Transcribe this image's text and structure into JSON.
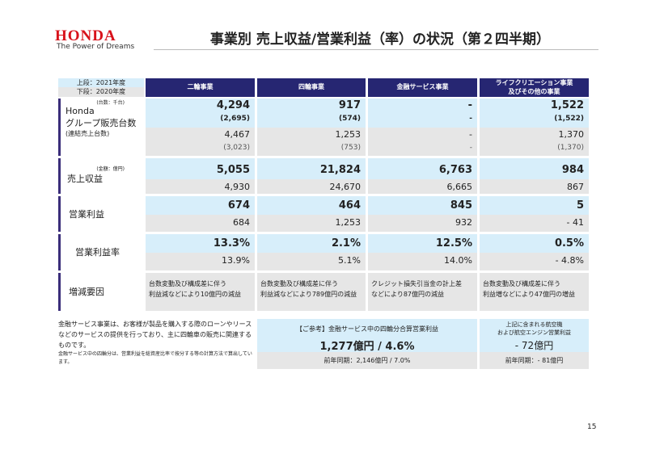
{
  "header": {
    "logo": "HONDA",
    "tagline": "The Power of Dreams",
    "title": "事業別 売上収益/営業利益（率）の状況（第２四半期）"
  },
  "legend": {
    "upper": "上段：2021年度",
    "lower": "下段：2020年度"
  },
  "columns": [
    "二輪事業",
    "四輪事業",
    "金融サービス事業",
    "ライフクリエーション事業\n及びその他の事業"
  ],
  "rows": {
    "units": {
      "unit_note": "(台数：千台)",
      "label1": "Honda",
      "label2": "グループ販売台数",
      "label3": "(連結売上台数)",
      "cur": [
        "4,294",
        "917",
        "-",
        "1,522"
      ],
      "cur_sub": [
        "(2,695)",
        "(574)",
        "-",
        "(1,522)"
      ],
      "prev": [
        "4,467",
        "1,253",
        "-",
        "1,370"
      ],
      "prev_sub": [
        "(3,023)",
        "(753)",
        "-",
        "(1,370)"
      ]
    },
    "revenue": {
      "unit_note": "(金額：億円)",
      "label": "売上収益",
      "cur": [
        "5,055",
        "21,824",
        "6,763",
        "984"
      ],
      "prev": [
        "4,930",
        "24,670",
        "6,665",
        "867"
      ]
    },
    "op_profit": {
      "label": "営業利益",
      "cur": [
        "674",
        "464",
        "845",
        "5"
      ],
      "prev": [
        "684",
        "1,253",
        "932",
        "- 41"
      ]
    },
    "margin": {
      "label": "営業利益率",
      "cur": [
        "13.3%",
        "2.1%",
        "12.5%",
        "0.5%"
      ],
      "prev": [
        "13.9%",
        "5.1%",
        "14.0%",
        "- 4.8%"
      ]
    },
    "factors": {
      "label": "増減要因",
      "values": [
        "台数変動及び構成差に伴う\n利益減などにより10億円の減益",
        "台数変動及び構成差に伴う\n利益減などにより789億円の減益",
        "クレジット損失引当金の計上差\nなどにより87億円の減益",
        "台数変動及び構成差に伴う\n利益増などにより47億円の増益"
      ]
    }
  },
  "notes": {
    "main": "金融サービス事業は、お客様が製品を購入する際のローンやリースなどのサービスの提供を行っており、主に四輪車の販売に関連するものです。",
    "sub": "金融サービス中の四輪分は、営業利益を総資産比率で按分する等の計算方法で算出しています。"
  },
  "ref_box": {
    "title": "【ご参考】金融サービス中の四輪分合算営業利益",
    "value": "1,277億円 / 4.6%",
    "prev": "前年同期：2,146億円 / 7.0%"
  },
  "aero_box": {
    "title": "上記に含まれる航空機\nおよび航空エンジン営業利益",
    "value": "- 72億円",
    "prev": "前年同期：- 81億円"
  },
  "page_number": "15"
}
